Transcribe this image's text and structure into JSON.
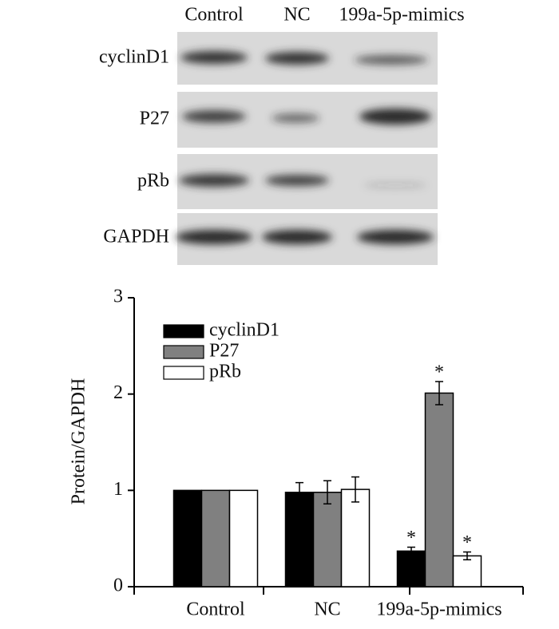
{
  "blot": {
    "lanes": [
      "Control",
      "NC",
      "199a-5p-mimics"
    ],
    "rows": [
      "cyclinD1",
      "P27",
      "pRb",
      "GAPDH"
    ]
  },
  "chart_data": {
    "type": "bar",
    "y_label": "Protein/GAPDH",
    "categories": [
      "Control",
      "NC",
      "199a-5p-mimics"
    ],
    "series": [
      {
        "name": "cyclinD1",
        "color": "#000000",
        "values": [
          1,
          0.98,
          0.37
        ],
        "errors": [
          null,
          0.1,
          0.04
        ],
        "markers": [
          null,
          null,
          "*"
        ]
      },
      {
        "name": "P27",
        "color": "#808080",
        "values": [
          1,
          0.98,
          2.01
        ],
        "errors": [
          null,
          0.12,
          0.12
        ],
        "markers": [
          null,
          null,
          "*"
        ]
      },
      {
        "name": "pRb",
        "color": "#ffffff",
        "values": [
          1,
          1.01,
          0.32
        ],
        "errors": [
          null,
          0.13,
          0.04
        ],
        "markers": [
          null,
          null,
          "*"
        ]
      }
    ],
    "ylim": [
      0,
      3
    ],
    "yticks": [
      0,
      1,
      2,
      3
    ],
    "legend": "upper left",
    "grid": false
  }
}
